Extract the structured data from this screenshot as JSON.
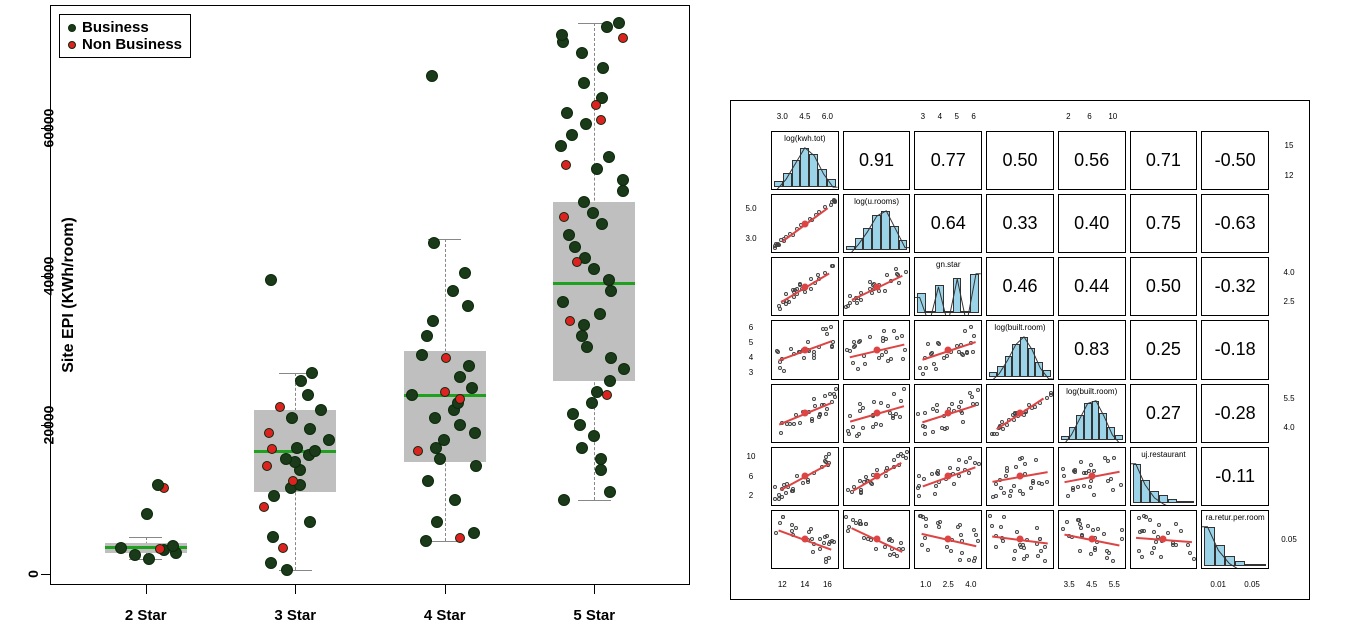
{
  "boxplot": {
    "type": "boxplot-with-jitter",
    "ylabel": "Site EPI (KWh/room)",
    "label_fontsize": 16,
    "label_fontweight": "bold",
    "background_color": "#ffffff",
    "border_color": "#000000",
    "ylim": [
      0,
      75000
    ],
    "yticks": [
      0,
      20000,
      40000,
      60000
    ],
    "categories": [
      "2 Star",
      "3 Star",
      "4 Star",
      "5 Star"
    ],
    "box_fill": "#bfbfbf",
    "median_color": "#1fa01f",
    "median_width": 3,
    "whisker_color": "#888888",
    "legend": {
      "items": [
        {
          "label": "Business",
          "marker_fill": "#1a3a1a",
          "marker_border": "#0a2a0a"
        },
        {
          "label": "Non Business",
          "marker_fill": "#d22",
          "marker_border": "#0a2a0a"
        }
      ],
      "border_color": "#000000",
      "fontsize": 15
    },
    "point_radius_business": 6,
    "point_radius_nonbusiness": 5,
    "boxes": [
      {
        "q1": 2800,
        "median": 3600,
        "q3": 4200,
        "whisker_lo": 2000,
        "whisker_hi": 5000
      },
      {
        "q1": 11000,
        "median": 16500,
        "q3": 22000,
        "whisker_lo": 500,
        "whisker_hi": 27000
      },
      {
        "q1": 15000,
        "median": 24000,
        "q3": 30000,
        "whisker_lo": 4500,
        "whisker_hi": 45000
      },
      {
        "q1": 26000,
        "median": 39000,
        "q3": 50000,
        "whisker_lo": 10000,
        "whisker_hi": 74000
      }
    ],
    "jitter": [
      {
        "cat": 0,
        "series": [
          {
            "type": "business",
            "y": [
              2000,
              2500,
              2800,
              3200,
              3500,
              3800
            ]
          },
          {
            "type": "nonbusiness",
            "y": [
              3300,
              11500
            ]
          }
        ],
        "outliers_business": [
          8000,
          12000
        ]
      },
      {
        "cat": 1,
        "series": [
          {
            "type": "business",
            "y": [
              500,
              1500,
              5000,
              7000,
              10500,
              11500,
              12000,
              14000,
              15000,
              15500,
              16000,
              16500,
              17000,
              18000,
              19500,
              21000,
              22000,
              24000,
              26000,
              27000,
              39500
            ]
          },
          {
            "type": "nonbusiness",
            "y": [
              3500,
              9000,
              12500,
              14500,
              16800,
              19000,
              22500
            ]
          }
        ]
      },
      {
        "cat": 2,
        "series": [
          {
            "type": "business",
            "y": [
              4500,
              5500,
              7000,
              10000,
              12500,
              14500,
              15500,
              17000,
              18000,
              19000,
              20000,
              21000,
              22000,
              23000,
              24000,
              25000,
              26500,
              28000,
              29500,
              32000,
              34000,
              36000,
              38000,
              40500,
              44500,
              67000
            ]
          },
          {
            "type": "nonbusiness",
            "y": [
              4800,
              16500,
              23500,
              24500,
              29000
            ]
          }
        ]
      },
      {
        "cat": 3,
        "series": [
          {
            "type": "business",
            "y": [
              10000,
              11000,
              14000,
              15500,
              17000,
              18500,
              20000,
              21500,
              23000,
              24500,
              26000,
              27500,
              29000,
              30500,
              32000,
              33500,
              35000,
              36500,
              38000,
              39500,
              41000,
              42500,
              44000,
              45500,
              47000,
              48500,
              50000,
              51500,
              53000,
              54500,
              56000,
              57500,
              59000,
              60500,
              62000,
              64000,
              66000,
              68000,
              70000,
              71500,
              72500,
              73500,
              74000
            ]
          },
          {
            "type": "nonbusiness",
            "y": [
              24000,
              34000,
              42000,
              48000,
              55000,
              61000,
              63000,
              72000
            ]
          }
        ]
      }
    ]
  },
  "pairs": {
    "type": "pairs-correlation-matrix",
    "grid": 7,
    "cell_border": "#000000",
    "hist_fill": "#9bd4e8",
    "hist_border": "#333333",
    "trend_color": "#d44",
    "point_border": "#444444",
    "vars": [
      "log(kwh.tot)",
      "log(u.rooms)",
      "gn.star",
      "log(built.room)",
      "log(built.room)",
      "uj.restaurant",
      "ra.retur.per.room"
    ],
    "top_axis": [
      [
        "3.0",
        "4.5",
        "6.0"
      ],
      null,
      [
        "3",
        "4",
        "5",
        "6"
      ],
      null,
      [
        "2",
        "6",
        "10"
      ],
      null,
      null
    ],
    "bottom_axis": [
      [
        "12",
        "14",
        "16"
      ],
      null,
      [
        "1.0",
        "2.5",
        "4.0"
      ],
      null,
      [
        "3.5",
        "4.5",
        "5.5"
      ],
      null,
      [
        "0.01",
        "0.05"
      ]
    ],
    "left_axis": [
      null,
      [
        "3.0",
        "5.0"
      ],
      null,
      [
        "3",
        "4",
        "5",
        "6"
      ],
      null,
      [
        "2",
        "6",
        "10"
      ],
      null
    ],
    "right_axis": [
      [
        "12",
        "15"
      ],
      null,
      [
        "2.5",
        "4.0"
      ],
      null,
      [
        "4.0",
        "5.5"
      ],
      null,
      [
        "0.05"
      ]
    ],
    "corr": [
      [
        null,
        0.91,
        0.77,
        0.5,
        0.56,
        0.71,
        -0.5
      ],
      [
        null,
        null,
        0.64,
        0.33,
        0.4,
        0.75,
        -0.63
      ],
      [
        null,
        null,
        null,
        0.46,
        0.44,
        0.5,
        -0.32
      ],
      [
        null,
        null,
        null,
        null,
        0.83,
        0.25,
        -0.18
      ],
      [
        null,
        null,
        null,
        null,
        null,
        0.27,
        -0.28
      ],
      [
        null,
        null,
        null,
        null,
        null,
        null,
        -0.11
      ],
      [
        null,
        null,
        null,
        null,
        null,
        null,
        null
      ]
    ],
    "diag_hist": [
      [
        0.15,
        0.35,
        0.65,
        0.95,
        0.8,
        0.45,
        0.2
      ],
      [
        0.1,
        0.3,
        0.55,
        0.85,
        0.95,
        0.6,
        0.25
      ],
      [
        0.5,
        0.0,
        0.7,
        0.0,
        0.85,
        0.0,
        0.95
      ],
      [
        0.1,
        0.25,
        0.5,
        0.8,
        0.95,
        0.7,
        0.35,
        0.15
      ],
      [
        0.1,
        0.3,
        0.6,
        0.9,
        0.95,
        0.65,
        0.3,
        0.12
      ],
      [
        0.95,
        0.55,
        0.3,
        0.18,
        0.1,
        0.05,
        0.03
      ],
      [
        0.95,
        0.5,
        0.25,
        0.12,
        0.06,
        0.03
      ]
    ],
    "corr_fontsize": 18
  }
}
